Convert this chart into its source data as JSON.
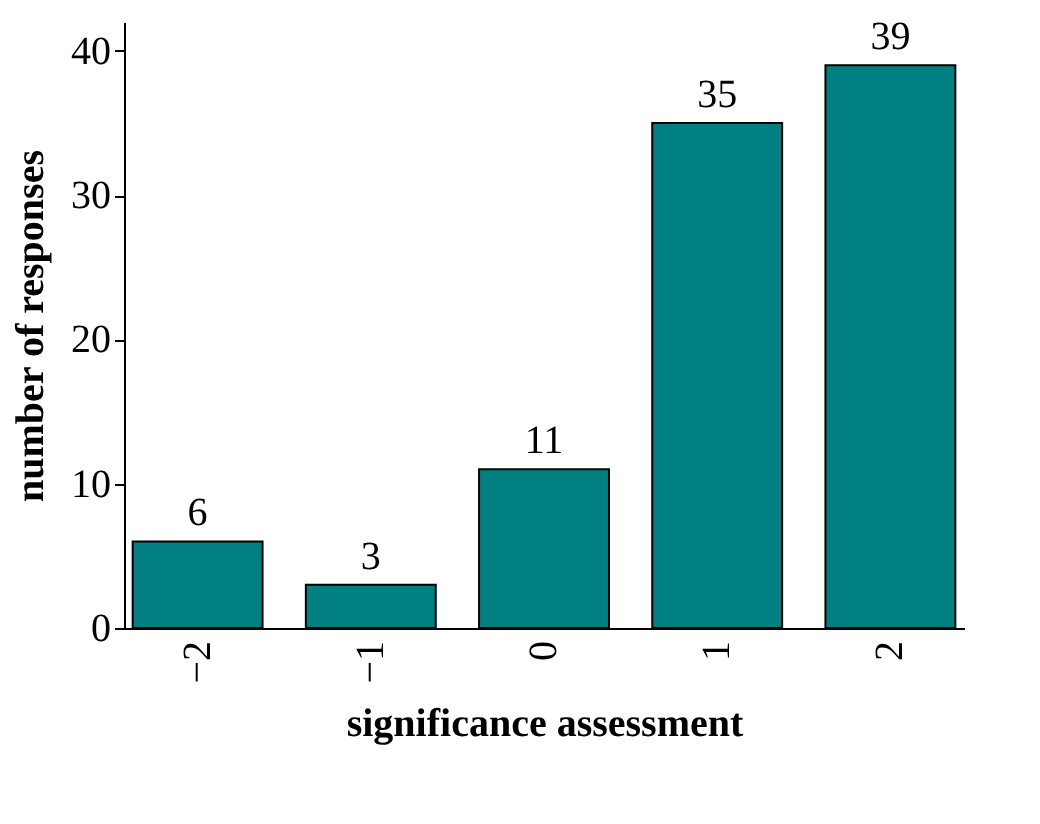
{
  "chart_data": {
    "type": "bar",
    "xlabel": "significance assessment",
    "ylabel": "number of responses",
    "categories": [
      "−2",
      "−1",
      "0",
      "1",
      "2"
    ],
    "values": [
      6,
      3,
      11,
      35,
      39
    ],
    "color": "#008080",
    "ylim": [
      0,
      42
    ],
    "yticks": [
      0,
      10,
      20,
      30,
      40
    ],
    "grid": false,
    "data_labels": true
  }
}
